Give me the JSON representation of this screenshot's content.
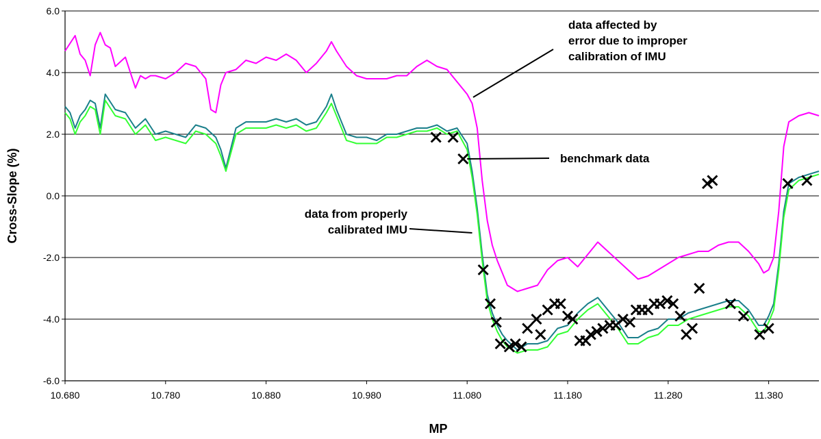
{
  "chart_data": {
    "type": "line",
    "title": "",
    "xlabel": "MP",
    "ylabel": "Cross-Slope (%)",
    "xlim": [
      10.68,
      11.43
    ],
    "ylim": [
      -6.0,
      6.0
    ],
    "grid": "horizontal",
    "x_tick_labels": [
      "10.680",
      "10.780",
      "10.880",
      "10.980",
      "11.080",
      "11.180",
      "11.280",
      "11.380"
    ],
    "x_ticks": [
      10.68,
      10.78,
      10.88,
      10.98,
      11.08,
      11.18,
      11.28,
      11.38
    ],
    "y_tick_labels": [
      "6.0",
      "4.0",
      "2.0",
      "0.0",
      "-2.0",
      "-4.0",
      "-6.0"
    ],
    "y_ticks": [
      6,
      4,
      2,
      0,
      -2,
      -4,
      -6
    ],
    "colors": {
      "magenta": "#ff00ff",
      "teal": "#1a7f8a",
      "green": "#33ff33",
      "marker": "#000000"
    },
    "series": [
      {
        "color": "magenta",
        "x": [
          10.68,
          10.69,
          10.695,
          10.7,
          10.705,
          10.71,
          10.715,
          10.72,
          10.725,
          10.73,
          10.74,
          10.75,
          10.755,
          10.76,
          10.765,
          10.77,
          10.78,
          10.79,
          10.8,
          10.81,
          10.82,
          10.825,
          10.83,
          10.835,
          10.84,
          10.85,
          10.86,
          10.87,
          10.88,
          10.89,
          10.9,
          10.91,
          10.92,
          10.93,
          10.94,
          10.945,
          10.95,
          10.96,
          10.97,
          10.98,
          10.99,
          11.0,
          11.01,
          11.02,
          11.03,
          11.04,
          11.05,
          11.06,
          11.07,
          11.08,
          11.085,
          11.09,
          11.095,
          11.1,
          11.105,
          11.11,
          11.115,
          11.12,
          11.13,
          11.14,
          11.15,
          11.16,
          11.17,
          11.18,
          11.19,
          11.2,
          11.21,
          11.22,
          11.23,
          11.24,
          11.25,
          11.26,
          11.27,
          11.28,
          11.29,
          11.3,
          11.31,
          11.32,
          11.33,
          11.34,
          11.35,
          11.36,
          11.37,
          11.375,
          11.38,
          11.385,
          11.39,
          11.395,
          11.4,
          11.41,
          11.42,
          11.43
        ],
        "y": [
          4.7,
          5.2,
          4.6,
          4.4,
          3.9,
          4.9,
          5.3,
          4.9,
          4.8,
          4.2,
          4.5,
          3.5,
          3.9,
          3.8,
          3.9,
          3.9,
          3.8,
          4.0,
          4.3,
          4.2,
          3.8,
          2.8,
          2.7,
          3.6,
          4.0,
          4.1,
          4.4,
          4.3,
          4.5,
          4.4,
          4.6,
          4.4,
          4.0,
          4.3,
          4.7,
          5.0,
          4.7,
          4.2,
          3.9,
          3.8,
          3.8,
          3.8,
          3.9,
          3.9,
          4.2,
          4.4,
          4.2,
          4.1,
          3.7,
          3.3,
          3.0,
          2.2,
          0.5,
          -0.8,
          -1.6,
          -2.1,
          -2.5,
          -2.9,
          -3.1,
          -3.0,
          -2.9,
          -2.4,
          -2.1,
          -2.0,
          -2.3,
          -1.9,
          -1.5,
          -1.8,
          -2.1,
          -2.4,
          -2.7,
          -2.6,
          -2.4,
          -2.2,
          -2.0,
          -1.9,
          -1.8,
          -1.8,
          -1.6,
          -1.5,
          -1.5,
          -1.8,
          -2.2,
          -2.5,
          -2.4,
          -2.0,
          -0.5,
          1.6,
          2.4,
          2.6,
          2.7,
          2.6
        ]
      },
      {
        "color": "teal",
        "x": [
          10.68,
          10.685,
          10.69,
          10.695,
          10.7,
          10.705,
          10.71,
          10.715,
          10.72,
          10.73,
          10.74,
          10.75,
          10.76,
          10.77,
          10.78,
          10.79,
          10.8,
          10.81,
          10.82,
          10.83,
          10.835,
          10.84,
          10.85,
          10.86,
          10.87,
          10.88,
          10.89,
          10.9,
          10.91,
          10.92,
          10.93,
          10.94,
          10.945,
          10.95,
          10.96,
          10.97,
          10.98,
          10.99,
          11.0,
          11.01,
          11.02,
          11.03,
          11.04,
          11.05,
          11.06,
          11.07,
          11.08,
          11.085,
          11.09,
          11.095,
          11.1,
          11.105,
          11.11,
          11.115,
          11.12,
          11.13,
          11.14,
          11.15,
          11.16,
          11.17,
          11.18,
          11.19,
          11.2,
          11.21,
          11.22,
          11.23,
          11.24,
          11.25,
          11.26,
          11.27,
          11.28,
          11.29,
          11.3,
          11.31,
          11.32,
          11.33,
          11.34,
          11.35,
          11.36,
          11.37,
          11.375,
          11.38,
          11.385,
          11.39,
          11.395,
          11.4,
          11.41,
          11.42,
          11.43
        ],
        "y": [
          2.9,
          2.7,
          2.2,
          2.6,
          2.8,
          3.1,
          3.0,
          2.2,
          3.3,
          2.8,
          2.7,
          2.2,
          2.5,
          2.0,
          2.1,
          2.0,
          1.9,
          2.3,
          2.2,
          1.9,
          1.5,
          0.9,
          2.2,
          2.4,
          2.4,
          2.4,
          2.5,
          2.4,
          2.5,
          2.3,
          2.4,
          2.9,
          3.3,
          2.8,
          2.0,
          1.9,
          1.9,
          1.8,
          2.0,
          2.0,
          2.1,
          2.2,
          2.2,
          2.3,
          2.1,
          2.2,
          1.7,
          0.8,
          -0.4,
          -1.9,
          -3.2,
          -3.8,
          -4.2,
          -4.5,
          -4.7,
          -5.0,
          -4.8,
          -4.8,
          -4.7,
          -4.3,
          -4.2,
          -3.8,
          -3.5,
          -3.3,
          -3.7,
          -4.1,
          -4.6,
          -4.6,
          -4.4,
          -4.3,
          -4.0,
          -4.0,
          -3.8,
          -3.7,
          -3.6,
          -3.5,
          -3.4,
          -3.4,
          -3.7,
          -4.2,
          -4.2,
          -3.9,
          -3.5,
          -2.2,
          -0.5,
          0.4,
          0.6,
          0.7,
          0.8
        ]
      },
      {
        "color": "green",
        "x": [
          10.68,
          10.685,
          10.69,
          10.695,
          10.7,
          10.705,
          10.71,
          10.715,
          10.72,
          10.73,
          10.74,
          10.75,
          10.76,
          10.77,
          10.78,
          10.79,
          10.8,
          10.81,
          10.82,
          10.83,
          10.835,
          10.84,
          10.85,
          10.86,
          10.87,
          10.88,
          10.89,
          10.9,
          10.91,
          10.92,
          10.93,
          10.94,
          10.945,
          10.95,
          10.96,
          10.97,
          10.98,
          10.99,
          11.0,
          11.01,
          11.02,
          11.03,
          11.04,
          11.05,
          11.06,
          11.07,
          11.08,
          11.085,
          11.09,
          11.095,
          11.1,
          11.105,
          11.11,
          11.115,
          11.12,
          11.13,
          11.14,
          11.15,
          11.16,
          11.17,
          11.18,
          11.19,
          11.2,
          11.21,
          11.22,
          11.23,
          11.24,
          11.25,
          11.26,
          11.27,
          11.28,
          11.29,
          11.3,
          11.31,
          11.32,
          11.33,
          11.34,
          11.35,
          11.36,
          11.37,
          11.375,
          11.38,
          11.385,
          11.39,
          11.395,
          11.4,
          11.41,
          11.42,
          11.43
        ],
        "y": [
          2.7,
          2.5,
          2.0,
          2.4,
          2.6,
          2.9,
          2.8,
          2.0,
          3.1,
          2.6,
          2.5,
          2.0,
          2.3,
          1.8,
          1.9,
          1.8,
          1.7,
          2.1,
          2.0,
          1.7,
          1.3,
          0.8,
          2.0,
          2.2,
          2.2,
          2.2,
          2.3,
          2.2,
          2.3,
          2.1,
          2.2,
          2.7,
          3.0,
          2.6,
          1.8,
          1.7,
          1.7,
          1.7,
          1.9,
          1.9,
          2.0,
          2.1,
          2.1,
          2.2,
          2.0,
          2.1,
          1.5,
          0.6,
          -0.6,
          -2.1,
          -3.4,
          -4.0,
          -4.4,
          -4.7,
          -4.9,
          -5.1,
          -5.0,
          -5.0,
          -4.9,
          -4.5,
          -4.4,
          -4.0,
          -3.7,
          -3.5,
          -3.9,
          -4.3,
          -4.8,
          -4.8,
          -4.6,
          -4.5,
          -4.2,
          -4.2,
          -4.0,
          -3.9,
          -3.8,
          -3.7,
          -3.6,
          -3.6,
          -3.9,
          -4.4,
          -4.4,
          -4.1,
          -3.7,
          -2.4,
          -0.7,
          0.2,
          0.5,
          0.6,
          0.7
        ]
      },
      {
        "color": "marker",
        "marker": "x",
        "x": [
          11.049,
          11.066,
          11.076,
          11.096,
          11.103,
          11.109,
          11.113,
          11.122,
          11.128,
          11.134,
          11.14,
          11.149,
          11.153,
          11.16,
          11.167,
          11.173,
          11.18,
          11.185,
          11.192,
          11.198,
          11.203,
          11.209,
          11.215,
          11.222,
          11.228,
          11.235,
          11.242,
          11.248,
          11.254,
          11.26,
          11.266,
          11.272,
          11.279,
          11.285,
          11.292,
          11.298,
          11.304,
          11.311,
          11.319,
          11.324,
          11.342,
          11.355,
          11.371,
          11.38,
          11.399,
          11.418
        ],
        "y": [
          1.9,
          1.9,
          1.2,
          -2.4,
          -3.5,
          -4.1,
          -4.8,
          -4.9,
          -4.8,
          -4.9,
          -4.3,
          -4.0,
          -4.5,
          -3.7,
          -3.5,
          -3.5,
          -3.9,
          -4.0,
          -4.7,
          -4.7,
          -4.5,
          -4.4,
          -4.3,
          -4.2,
          -4.2,
          -4.0,
          -4.1,
          -3.7,
          -3.7,
          -3.7,
          -3.5,
          -3.5,
          -3.4,
          -3.5,
          -3.9,
          -4.5,
          -4.3,
          -3.0,
          0.4,
          0.5,
          -3.5,
          -3.9,
          -4.5,
          -4.3,
          0.4,
          0.5
        ]
      }
    ],
    "annotations": [
      {
        "lines": [
          "data affected by",
          "error due to improper",
          "calibration of IMU"
        ],
        "x": 11.086,
        "y": 3.2
      },
      {
        "lines": [
          "benchmark data"
        ],
        "x": 11.08,
        "y": 1.2
      },
      {
        "lines": [
          "data from properly",
          "calibrated IMU"
        ],
        "x": 11.085,
        "y": -1.2
      }
    ]
  }
}
